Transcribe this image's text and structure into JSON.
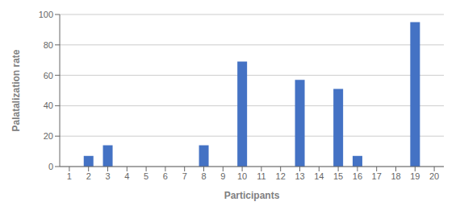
{
  "chart_data": {
    "type": "bar",
    "categories": [
      1,
      2,
      3,
      4,
      5,
      6,
      7,
      8,
      9,
      10,
      11,
      12,
      13,
      14,
      15,
      16,
      17,
      18,
      19,
      20
    ],
    "values": [
      0,
      7,
      14,
      0,
      0,
      0,
      0,
      14,
      0,
      69,
      0,
      0,
      57,
      0,
      51,
      7,
      0,
      0,
      95,
      0
    ],
    "color": "#4472C4",
    "xlabel": "Participants",
    "ylabel": "Palatalization rate",
    "ylim": [
      0,
      100
    ],
    "yticks": [
      0,
      20,
      40,
      60,
      80,
      100
    ],
    "grid": true
  }
}
